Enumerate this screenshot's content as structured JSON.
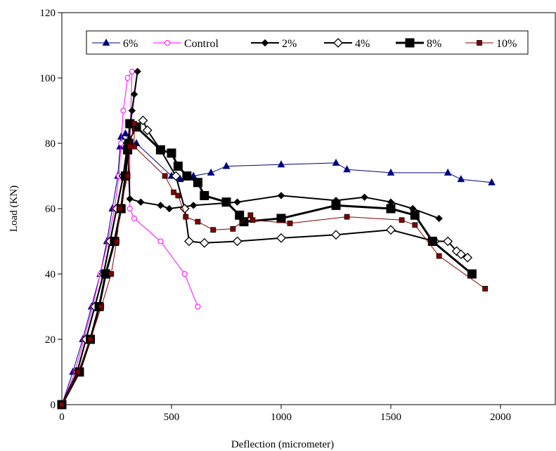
{
  "chart_data": {
    "type": "line",
    "xlabel": "Deflection (micrometer)",
    "ylabel": "Load (KN)",
    "xlim": [
      0,
      2250
    ],
    "ylim": [
      0,
      120
    ],
    "xticks": [
      0,
      500,
      1000,
      1500,
      2000
    ],
    "yticks": [
      0,
      20,
      40,
      60,
      80,
      100,
      120
    ],
    "grid": false,
    "legend_position": "top",
    "series": [
      {
        "name": "6%",
        "color": "#000080",
        "marker": "triangle",
        "line_width": 1,
        "points": [
          [
            0,
            0
          ],
          [
            50,
            10
          ],
          [
            95,
            20
          ],
          [
            135,
            30
          ],
          [
            175,
            40
          ],
          [
            205,
            50
          ],
          [
            230,
            60
          ],
          [
            255,
            70
          ],
          [
            265,
            79
          ],
          [
            270,
            82
          ],
          [
            290,
            83
          ],
          [
            310,
            80
          ],
          [
            340,
            80
          ],
          [
            500,
            70
          ],
          [
            540,
            69
          ],
          [
            600,
            70
          ],
          [
            680,
            71
          ],
          [
            750,
            73
          ],
          [
            1000,
            73.5
          ],
          [
            1250,
            74
          ],
          [
            1300,
            72
          ],
          [
            1500,
            71
          ],
          [
            1760,
            71
          ],
          [
            1820,
            69
          ],
          [
            1960,
            68
          ]
        ]
      },
      {
        "name": "Control",
        "color": "#ff00ff",
        "marker": "circle",
        "line_width": 1,
        "points": [
          [
            0,
            0
          ],
          [
            60,
            10
          ],
          [
            100,
            20
          ],
          [
            140,
            30
          ],
          [
            175,
            40
          ],
          [
            210,
            50
          ],
          [
            240,
            60
          ],
          [
            260,
            70
          ],
          [
            270,
            80
          ],
          [
            280,
            90
          ],
          [
            300,
            100
          ],
          [
            320,
            102
          ],
          [
            310,
            80
          ],
          [
            310,
            60
          ],
          [
            330,
            57
          ],
          [
            450,
            50
          ],
          [
            560,
            40
          ],
          [
            620,
            30
          ]
        ]
      },
      {
        "name": "2%",
        "color": "#000000",
        "marker": "diamond",
        "line_width": 2,
        "points": [
          [
            0,
            0
          ],
          [
            70,
            10
          ],
          [
            110,
            20
          ],
          [
            150,
            30
          ],
          [
            190,
            40
          ],
          [
            220,
            50
          ],
          [
            250,
            60
          ],
          [
            280,
            70
          ],
          [
            300,
            80
          ],
          [
            320,
            90
          ],
          [
            330,
            95
          ],
          [
            345,
            102
          ],
          [
            300,
            80
          ],
          [
            310,
            63
          ],
          [
            360,
            62
          ],
          [
            450,
            61
          ],
          [
            490,
            60
          ],
          [
            600,
            61
          ],
          [
            800,
            62
          ],
          [
            1000,
            64
          ],
          [
            1250,
            62.5
          ],
          [
            1380,
            63.5
          ],
          [
            1500,
            62
          ],
          [
            1600,
            60
          ],
          [
            1720,
            57
          ]
        ]
      },
      {
        "name": "4%",
        "color": "#000000",
        "marker": "open-diamond",
        "line_width": 2,
        "points": [
          [
            0,
            0
          ],
          [
            70,
            10
          ],
          [
            110,
            20
          ],
          [
            150,
            30
          ],
          [
            190,
            40
          ],
          [
            220,
            50
          ],
          [
            250,
            60
          ],
          [
            280,
            70
          ],
          [
            300,
            80
          ],
          [
            340,
            85
          ],
          [
            370,
            87
          ],
          [
            390,
            84
          ],
          [
            450,
            78
          ],
          [
            520,
            70
          ],
          [
            560,
            60
          ],
          [
            580,
            50
          ],
          [
            650,
            49.5
          ],
          [
            800,
            50
          ],
          [
            1000,
            51
          ],
          [
            1250,
            52
          ],
          [
            1500,
            53.5
          ],
          [
            1700,
            50
          ],
          [
            1760,
            50
          ],
          [
            1800,
            47
          ],
          [
            1820,
            46
          ],
          [
            1850,
            45
          ]
        ]
      },
      {
        "name": "8%",
        "color": "#000000",
        "marker": "square",
        "line_width": 3,
        "points": [
          [
            0,
            0
          ],
          [
            80,
            10
          ],
          [
            130,
            20
          ],
          [
            170,
            30
          ],
          [
            200,
            40
          ],
          [
            240,
            50
          ],
          [
            270,
            60
          ],
          [
            290,
            70
          ],
          [
            300,
            78
          ],
          [
            305,
            80
          ],
          [
            310,
            86
          ],
          [
            340,
            85
          ],
          [
            450,
            78
          ],
          [
            500,
            77
          ],
          [
            530,
            73
          ],
          [
            570,
            70
          ],
          [
            620,
            68
          ],
          [
            650,
            64
          ],
          [
            750,
            62
          ],
          [
            810,
            58
          ],
          [
            830,
            56
          ],
          [
            1000,
            57
          ],
          [
            1250,
            61
          ],
          [
            1500,
            60
          ],
          [
            1610,
            58
          ],
          [
            1690,
            50
          ],
          [
            1870,
            40
          ]
        ]
      },
      {
        "name": "10%",
        "color": "#800000",
        "marker": "small-square",
        "line_width": 1,
        "points": [
          [
            0,
            0
          ],
          [
            75,
            10
          ],
          [
            130,
            20
          ],
          [
            180,
            30
          ],
          [
            225,
            40
          ],
          [
            250,
            50
          ],
          [
            265,
            60
          ],
          [
            300,
            70
          ],
          [
            310,
            79
          ],
          [
            330,
            86
          ],
          [
            330,
            79
          ],
          [
            470,
            70
          ],
          [
            510,
            65
          ],
          [
            530,
            64
          ],
          [
            565,
            57.5
          ],
          [
            620,
            56
          ],
          [
            690,
            53.5
          ],
          [
            780,
            53.8
          ],
          [
            860,
            58
          ],
          [
            870,
            56.5
          ],
          [
            1040,
            55.5
          ],
          [
            1300,
            57.5
          ],
          [
            1550,
            56.5
          ],
          [
            1610,
            55
          ],
          [
            1720,
            45.5
          ],
          [
            1930,
            35.5
          ]
        ]
      }
    ]
  }
}
